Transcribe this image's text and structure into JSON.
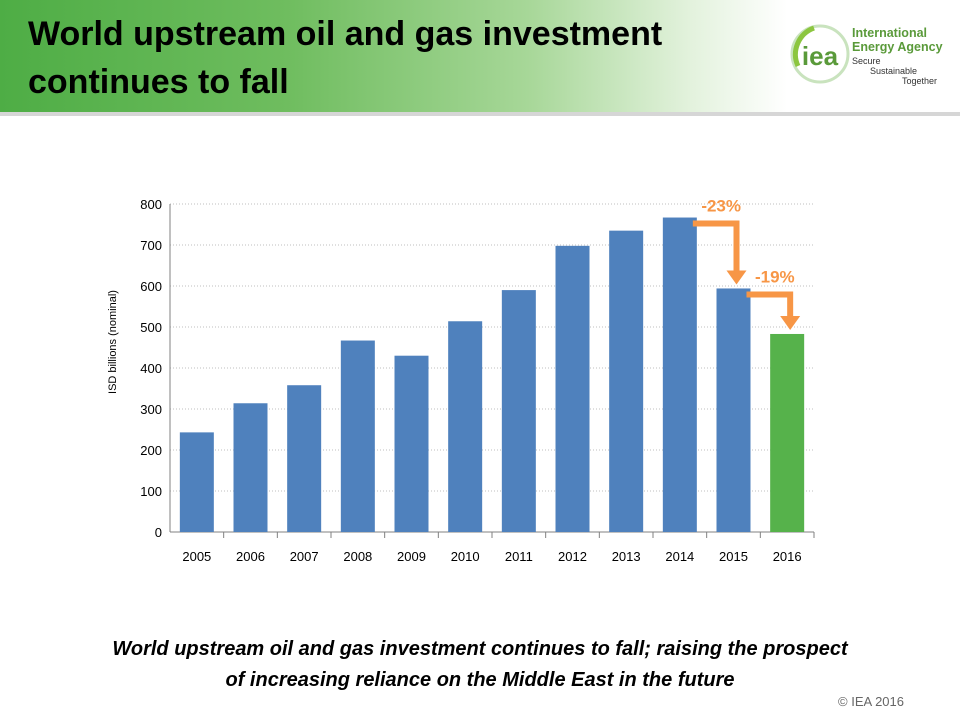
{
  "header": {
    "title": "World upstream oil and gas investment continues to fall",
    "logo": {
      "mark": "iea",
      "name_line1": "International",
      "name_line2": "Energy Agency",
      "tag1": "Secure",
      "tag2": "Sustainable",
      "tag3": "Together"
    }
  },
  "chart_data": {
    "type": "bar",
    "categories": [
      "2005",
      "2006",
      "2007",
      "2008",
      "2009",
      "2010",
      "2011",
      "2012",
      "2013",
      "2014",
      "2015",
      "2016"
    ],
    "values": [
      243,
      314,
      358,
      467,
      430,
      514,
      590,
      698,
      735,
      767,
      594,
      483
    ],
    "bar_colors": [
      "#4f81bd",
      "#4f81bd",
      "#4f81bd",
      "#4f81bd",
      "#4f81bd",
      "#4f81bd",
      "#4f81bd",
      "#4f81bd",
      "#4f81bd",
      "#4f81bd",
      "#4f81bd",
      "#56b24b"
    ],
    "title": "",
    "xlabel": "",
    "ylabel": "ISD billions (nominal)",
    "ylim": [
      0,
      800
    ],
    "yticks": [
      0,
      100,
      200,
      300,
      400,
      500,
      600,
      700,
      800
    ],
    "grid": true,
    "annotations": [
      {
        "text": "-23%",
        "from": "2014",
        "to": "2015",
        "color": "#f79646"
      },
      {
        "text": "-19%",
        "from": "2015",
        "to": "2016",
        "color": "#f79646"
      }
    ]
  },
  "caption": {
    "line1": "World upstream oil and gas investment continues to fall; raising the prospect",
    "line2": "of increasing reliance on the Middle East in the future"
  },
  "footer": {
    "copyright": "© IEA 2016"
  }
}
